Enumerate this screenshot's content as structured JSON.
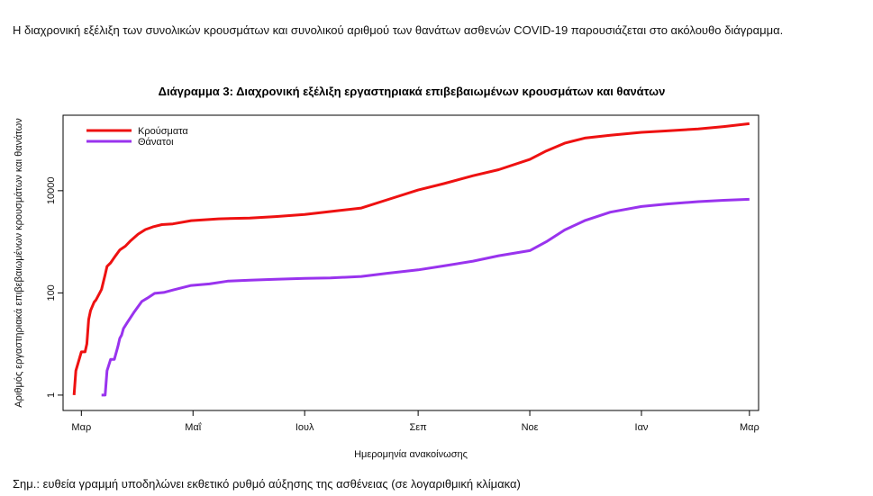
{
  "intro_text": "Η διαχρονική εξέλιξη των συνολικών κρουσμάτων και συνολικού αριθμού των θανάτων ασθενών COVID-19 παρουσιάζεται στο ακόλουθο διάγραμμα.",
  "note_text": "Σημ.: ευθεία γραμμή υποδηλώνει εκθετικό ρυθμό αύξησης της ασθένειας (σε λογαριθμική κλίμακα)",
  "chart_data": {
    "type": "line",
    "title": "Διάγραμμα 3: Διαχρονική εξέλιξη εργαστηριακά επιβεβαιωμένων κρουσμάτων και θανάτων",
    "xlabel": "Ημερομηνία ανακοίνωσης",
    "ylabel": "Αριθμός εργαστηριακά επιβεβαιωμένων κρουσμάτων και θανάτων",
    "y_scale": "log",
    "ylim": [
      0.5,
      300000
    ],
    "y_ticks": [
      1,
      100,
      10000
    ],
    "y_tick_labels": [
      "1",
      "100",
      "10000"
    ],
    "x_ticks": [
      "2020-03-01",
      "2020-05-01",
      "2020-07-01",
      "2020-09-01",
      "2020-11-01",
      "2021-01-01",
      "2021-03-01"
    ],
    "x_tick_labels": [
      "Μαρ",
      "Μαΐ",
      "Ιουλ",
      "Σεπ",
      "Νοε",
      "Ιαν",
      "Μαρ"
    ],
    "xlim": [
      "2020-02-20",
      "2021-03-06"
    ],
    "grid": false,
    "legend_position": "top-left",
    "series": [
      {
        "name": "Κρούσματα",
        "color": "#ee1111",
        "points": [
          [
            "2020-02-26",
            1
          ],
          [
            "2020-02-27",
            3
          ],
          [
            "2020-02-28",
            4
          ],
          [
            "2020-03-01",
            7
          ],
          [
            "2020-03-03",
            7
          ],
          [
            "2020-03-04",
            10
          ],
          [
            "2020-03-05",
            30
          ],
          [
            "2020-03-06",
            45
          ],
          [
            "2020-03-08",
            66
          ],
          [
            "2020-03-09",
            73
          ],
          [
            "2020-03-11",
            99
          ],
          [
            "2020-03-12",
            117
          ],
          [
            "2020-03-14",
            228
          ],
          [
            "2020-03-15",
            331
          ],
          [
            "2020-03-17",
            387
          ],
          [
            "2020-03-19",
            495
          ],
          [
            "2020-03-22",
            695
          ],
          [
            "2020-03-25",
            821
          ],
          [
            "2020-03-28",
            1061
          ],
          [
            "2020-04-01",
            1415
          ],
          [
            "2020-04-05",
            1735
          ],
          [
            "2020-04-09",
            1955
          ],
          [
            "2020-04-14",
            2170
          ],
          [
            "2020-04-20",
            2245
          ],
          [
            "2020-04-30",
            2591
          ],
          [
            "2020-05-15",
            2819
          ],
          [
            "2020-06-01",
            2918
          ],
          [
            "2020-06-15",
            3121
          ],
          [
            "2020-07-01",
            3432
          ],
          [
            "2020-07-15",
            3910
          ],
          [
            "2020-08-01",
            4587
          ],
          [
            "2020-08-15",
            6632
          ],
          [
            "2020-09-01",
            10317
          ],
          [
            "2020-09-15",
            13730
          ],
          [
            "2020-10-01",
            19613
          ],
          [
            "2020-10-15",
            25802
          ],
          [
            "2020-11-01",
            40929
          ],
          [
            "2020-11-10",
            60000
          ],
          [
            "2020-11-20",
            85000
          ],
          [
            "2020-12-01",
            107000
          ],
          [
            "2020-12-15",
            122000
          ],
          [
            "2021-01-01",
            139000
          ],
          [
            "2021-01-15",
            148000
          ],
          [
            "2021-02-01",
            162000
          ],
          [
            "2021-02-15",
            180000
          ],
          [
            "2021-03-01",
            205000
          ]
        ]
      },
      {
        "name": "Θάνατοι",
        "color": "#9933ee",
        "points": [
          [
            "2020-03-12",
            1
          ],
          [
            "2020-03-14",
            1
          ],
          [
            "2020-03-15",
            3
          ],
          [
            "2020-03-17",
            5
          ],
          [
            "2020-03-19",
            5
          ],
          [
            "2020-03-21",
            9
          ],
          [
            "2020-03-22",
            13
          ],
          [
            "2020-03-23",
            15
          ],
          [
            "2020-03-24",
            20
          ],
          [
            "2020-03-26",
            26
          ],
          [
            "2020-03-30",
            43
          ],
          [
            "2020-04-03",
            68
          ],
          [
            "2020-04-06",
            79
          ],
          [
            "2020-04-10",
            98
          ],
          [
            "2020-04-15",
            102
          ],
          [
            "2020-04-20",
            114
          ],
          [
            "2020-04-30",
            140
          ],
          [
            "2020-05-10",
            150
          ],
          [
            "2020-05-20",
            170
          ],
          [
            "2020-06-01",
            178
          ],
          [
            "2020-06-15",
            185
          ],
          [
            "2020-07-01",
            192
          ],
          [
            "2020-07-15",
            196
          ],
          [
            "2020-08-01",
            210
          ],
          [
            "2020-08-15",
            242
          ],
          [
            "2020-09-01",
            282
          ],
          [
            "2020-09-15",
            338
          ],
          [
            "2020-10-01",
            418
          ],
          [
            "2020-10-15",
            534
          ],
          [
            "2020-11-01",
            673
          ],
          [
            "2020-11-10",
            1000
          ],
          [
            "2020-11-20",
            1700
          ],
          [
            "2020-12-01",
            2600
          ],
          [
            "2020-12-15",
            3800
          ],
          [
            "2021-01-01",
            4900
          ],
          [
            "2021-01-15",
            5500
          ],
          [
            "2021-02-01",
            6100
          ],
          [
            "2021-02-15",
            6500
          ],
          [
            "2021-03-01",
            6800
          ]
        ]
      }
    ]
  }
}
